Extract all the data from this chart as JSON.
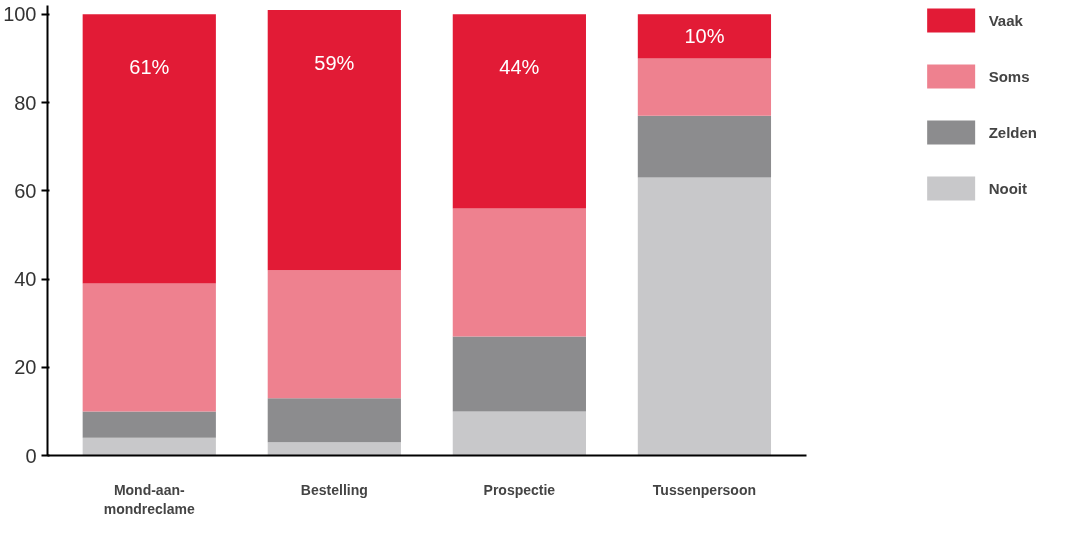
{
  "chart_data": {
    "type": "bar",
    "stacked": true,
    "categories": [
      "Mond-aan-mondreclame",
      "Bestelling",
      "Prospectie",
      "Tussenpersoon"
    ],
    "series": [
      {
        "name": "Nooit",
        "color": "#c8c8ca",
        "values": [
          4,
          3,
          10,
          63
        ]
      },
      {
        "name": "Zelden",
        "color": "#8c8c8e",
        "values": [
          6,
          10,
          17,
          14
        ]
      },
      {
        "name": "Soms",
        "color": "#ee818f",
        "values": [
          29,
          29,
          29,
          13
        ]
      },
      {
        "name": "Vaak",
        "color": "#e21b36",
        "values": [
          61,
          59,
          44,
          10
        ],
        "value_labels": [
          "61%",
          "59%",
          "44%",
          "10%"
        ]
      }
    ],
    "ylim": [
      0,
      102
    ],
    "yticks": [
      0,
      20,
      40,
      60,
      80,
      100
    ],
    "grid": false,
    "legend": "right"
  }
}
